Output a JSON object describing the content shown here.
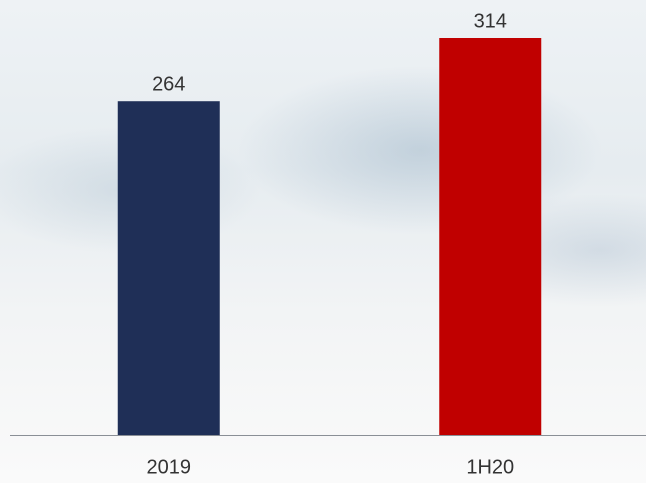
{
  "chart_data": {
    "type": "bar",
    "categories": [
      "2019",
      "1H20"
    ],
    "values": [
      264,
      314
    ],
    "colors": [
      "#1f2f57",
      "#c00000"
    ]
  }
}
